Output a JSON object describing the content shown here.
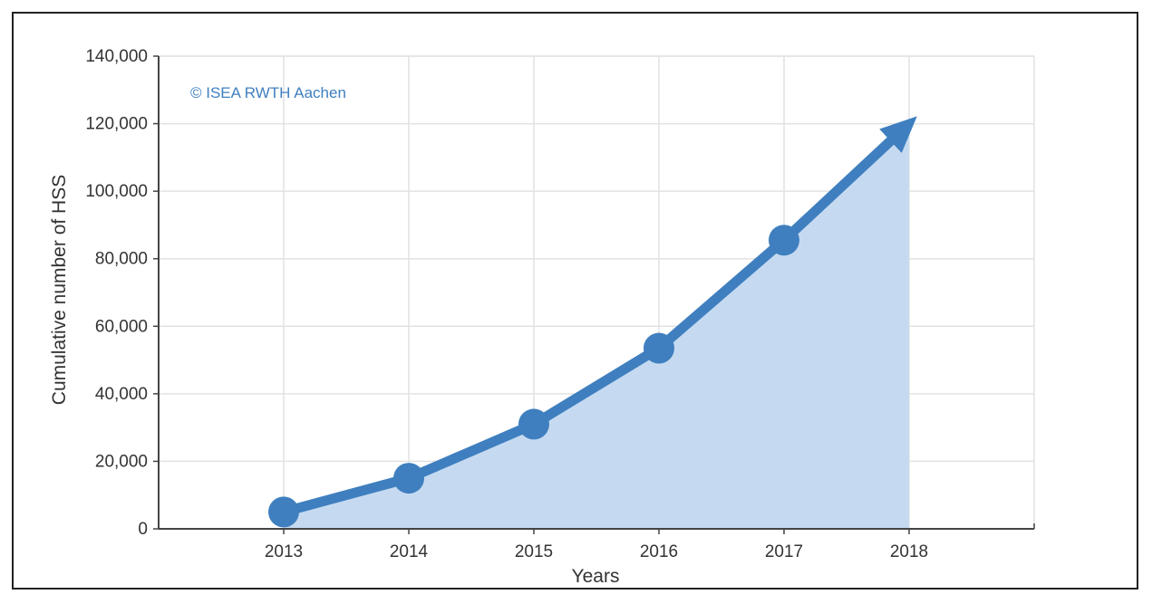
{
  "chart_data": {
    "type": "area",
    "title": "",
    "xlabel": "Years",
    "ylabel": "Cumulative number of HSS",
    "annotation": "© ISEA RWTH Aachen",
    "x": [
      2013,
      2014,
      2015,
      2016,
      2017,
      2018
    ],
    "x_tick_labels": [
      "2013",
      "2014",
      "2015",
      "2016",
      "2017",
      "2018"
    ],
    "xlim": [
      2012,
      2019
    ],
    "y_ticks": [
      0,
      20000,
      40000,
      60000,
      80000,
      100000,
      120000,
      140000
    ],
    "y_tick_labels": [
      "0",
      "20,000",
      "40,000",
      "60,000",
      "80,000",
      "100,000",
      "120,000",
      "140,000"
    ],
    "ylim": [
      0,
      140000
    ],
    "grid": true,
    "series": [
      {
        "values": [
          5000,
          15000,
          31000,
          53500,
          85500,
          120000
        ],
        "marker_points": [
          2013,
          2014,
          2015,
          2016,
          2017
        ],
        "arrow_at_end": true
      }
    ],
    "colors": {
      "line": "#3f7fbf",
      "fill": "#c5daf1",
      "grid": "#e2e2e2",
      "axis": "#444444",
      "annotation": "#3f7fbf"
    }
  }
}
